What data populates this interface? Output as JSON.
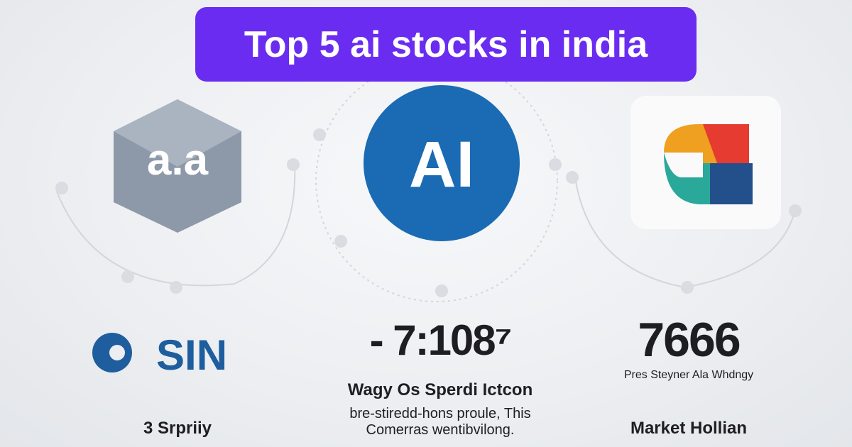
{
  "header": {
    "title": "Top 5 ai stocks in india"
  },
  "columns": [
    {
      "logo": "a.a",
      "name": "SIN",
      "footer": "3 Srpriiy"
    },
    {
      "logo": "AI",
      "figure": "- 7:108⁷",
      "heading": "Wagy Os Sperdi Ictcon",
      "description": [
        "bre-stiredd-hons proule, This",
        "Comerras wentibvilong."
      ]
    },
    {
      "figure": "7666",
      "caption": "Pres Steyner Ala Whdngy",
      "footer": "Market Hollian"
    }
  ]
}
